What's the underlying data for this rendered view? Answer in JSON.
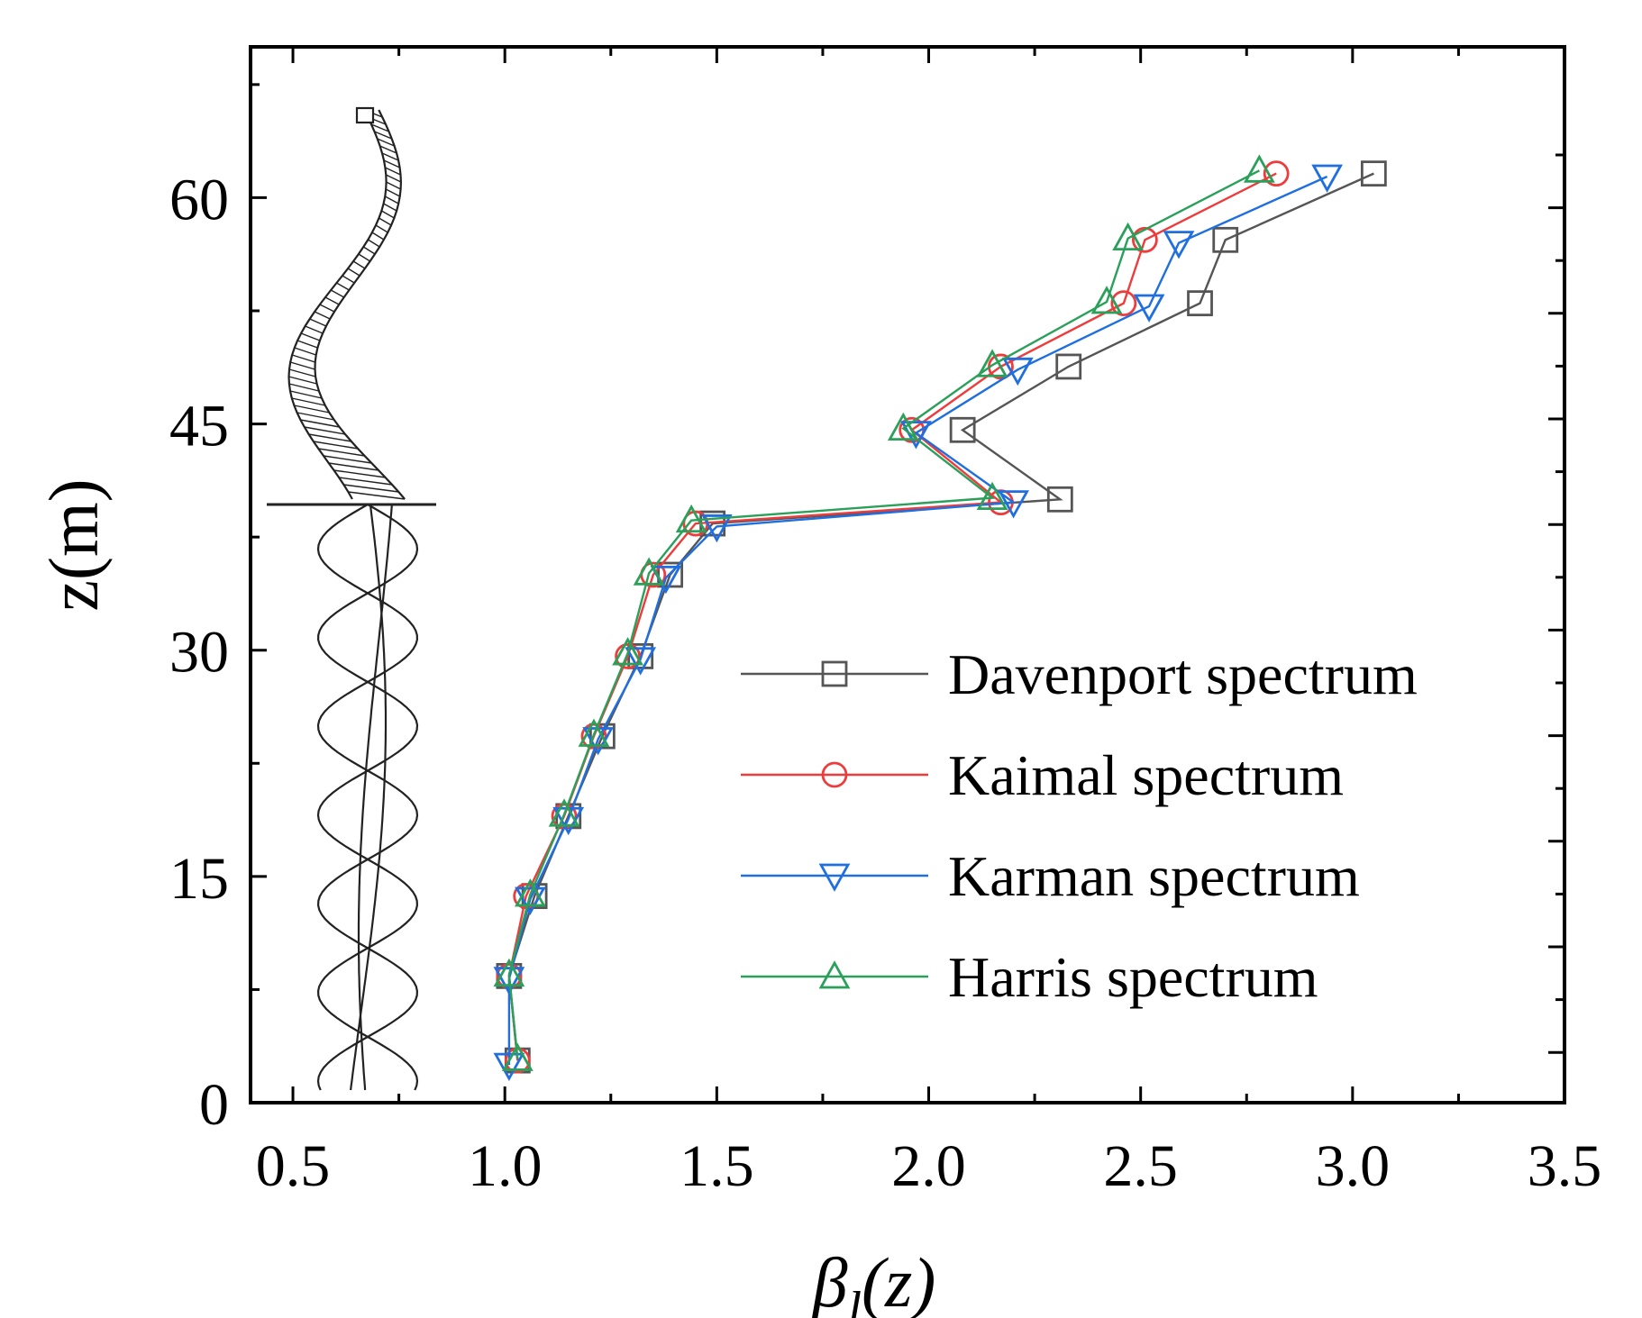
{
  "chart_data": {
    "type": "line",
    "xlabel": "β",
    "xlabel_sub": "l",
    "xlabel_arg": "(z)",
    "ylabel": "z(m)",
    "xlim": [
      0.4,
      3.5
    ],
    "ylim": [
      0,
      70
    ],
    "x_ticks": [
      0.5,
      1.0,
      1.5,
      2.0,
      2.5,
      3.0,
      3.5
    ],
    "x_tick_labels": [
      "0.5",
      "1.0",
      "1.5",
      "2.0",
      "2.5",
      "3.0",
      "3.5"
    ],
    "y_ticks": [
      0,
      15,
      30,
      45,
      60
    ],
    "y_tick_labels": [
      "0",
      "15",
      "30",
      "45",
      "60"
    ],
    "legend_position": "center-right",
    "series": [
      {
        "name": "Davenport spectrum",
        "color": "#555555",
        "marker": "square",
        "points": [
          {
            "x": 1.03,
            "y": 2.8
          },
          {
            "x": 1.01,
            "y": 8.4
          },
          {
            "x": 1.07,
            "y": 13.7
          },
          {
            "x": 1.15,
            "y": 19.0
          },
          {
            "x": 1.23,
            "y": 24.3
          },
          {
            "x": 1.32,
            "y": 29.6
          },
          {
            "x": 1.39,
            "y": 35.0
          },
          {
            "x": 1.49,
            "y": 38.4
          },
          {
            "x": 2.31,
            "y": 40.0
          },
          {
            "x": 2.08,
            "y": 44.6
          },
          {
            "x": 2.33,
            "y": 48.8
          },
          {
            "x": 2.64,
            "y": 53.0
          },
          {
            "x": 2.7,
            "y": 57.2
          },
          {
            "x": 3.05,
            "y": 61.6
          }
        ]
      },
      {
        "name": "Kaimal spectrum",
        "color": "#ee3b3b",
        "marker": "circle",
        "points": [
          {
            "x": 1.03,
            "y": 2.8
          },
          {
            "x": 1.01,
            "y": 8.4
          },
          {
            "x": 1.05,
            "y": 13.7
          },
          {
            "x": 1.14,
            "y": 19.0
          },
          {
            "x": 1.21,
            "y": 24.3
          },
          {
            "x": 1.29,
            "y": 29.6
          },
          {
            "x": 1.35,
            "y": 35.0
          },
          {
            "x": 1.45,
            "y": 38.4
          },
          {
            "x": 2.17,
            "y": 39.8
          },
          {
            "x": 1.96,
            "y": 44.6
          },
          {
            "x": 2.17,
            "y": 48.8
          },
          {
            "x": 2.46,
            "y": 53.0
          },
          {
            "x": 2.51,
            "y": 57.2
          },
          {
            "x": 2.82,
            "y": 61.6
          }
        ]
      },
      {
        "name": "Karman spectrum",
        "color": "#1f6fe0",
        "marker": "triangle-down",
        "points": [
          {
            "x": 1.01,
            "y": 2.5
          },
          {
            "x": 1.01,
            "y": 8.2
          },
          {
            "x": 1.06,
            "y": 13.5
          },
          {
            "x": 1.15,
            "y": 18.8
          },
          {
            "x": 1.22,
            "y": 24.1
          },
          {
            "x": 1.32,
            "y": 29.4
          },
          {
            "x": 1.38,
            "y": 34.8
          },
          {
            "x": 1.5,
            "y": 38.2
          },
          {
            "x": 2.2,
            "y": 39.8
          },
          {
            "x": 1.97,
            "y": 44.4
          },
          {
            "x": 2.21,
            "y": 48.6
          },
          {
            "x": 2.52,
            "y": 52.8
          },
          {
            "x": 2.59,
            "y": 57.0
          },
          {
            "x": 2.94,
            "y": 61.4
          }
        ]
      },
      {
        "name": "Harris spectrum",
        "color": "#2aa05a",
        "marker": "triangle-up",
        "points": [
          {
            "x": 1.03,
            "y": 2.9
          },
          {
            "x": 1.01,
            "y": 8.5
          },
          {
            "x": 1.06,
            "y": 13.8
          },
          {
            "x": 1.14,
            "y": 19.1
          },
          {
            "x": 1.21,
            "y": 24.4
          },
          {
            "x": 1.29,
            "y": 29.8
          },
          {
            "x": 1.34,
            "y": 35.1
          },
          {
            "x": 1.44,
            "y": 38.6
          },
          {
            "x": 2.15,
            "y": 40.1
          },
          {
            "x": 1.94,
            "y": 44.7
          },
          {
            "x": 2.15,
            "y": 48.9
          },
          {
            "x": 2.42,
            "y": 53.1
          },
          {
            "x": 2.47,
            "y": 57.3
          },
          {
            "x": 2.78,
            "y": 61.8
          }
        ]
      }
    ]
  }
}
